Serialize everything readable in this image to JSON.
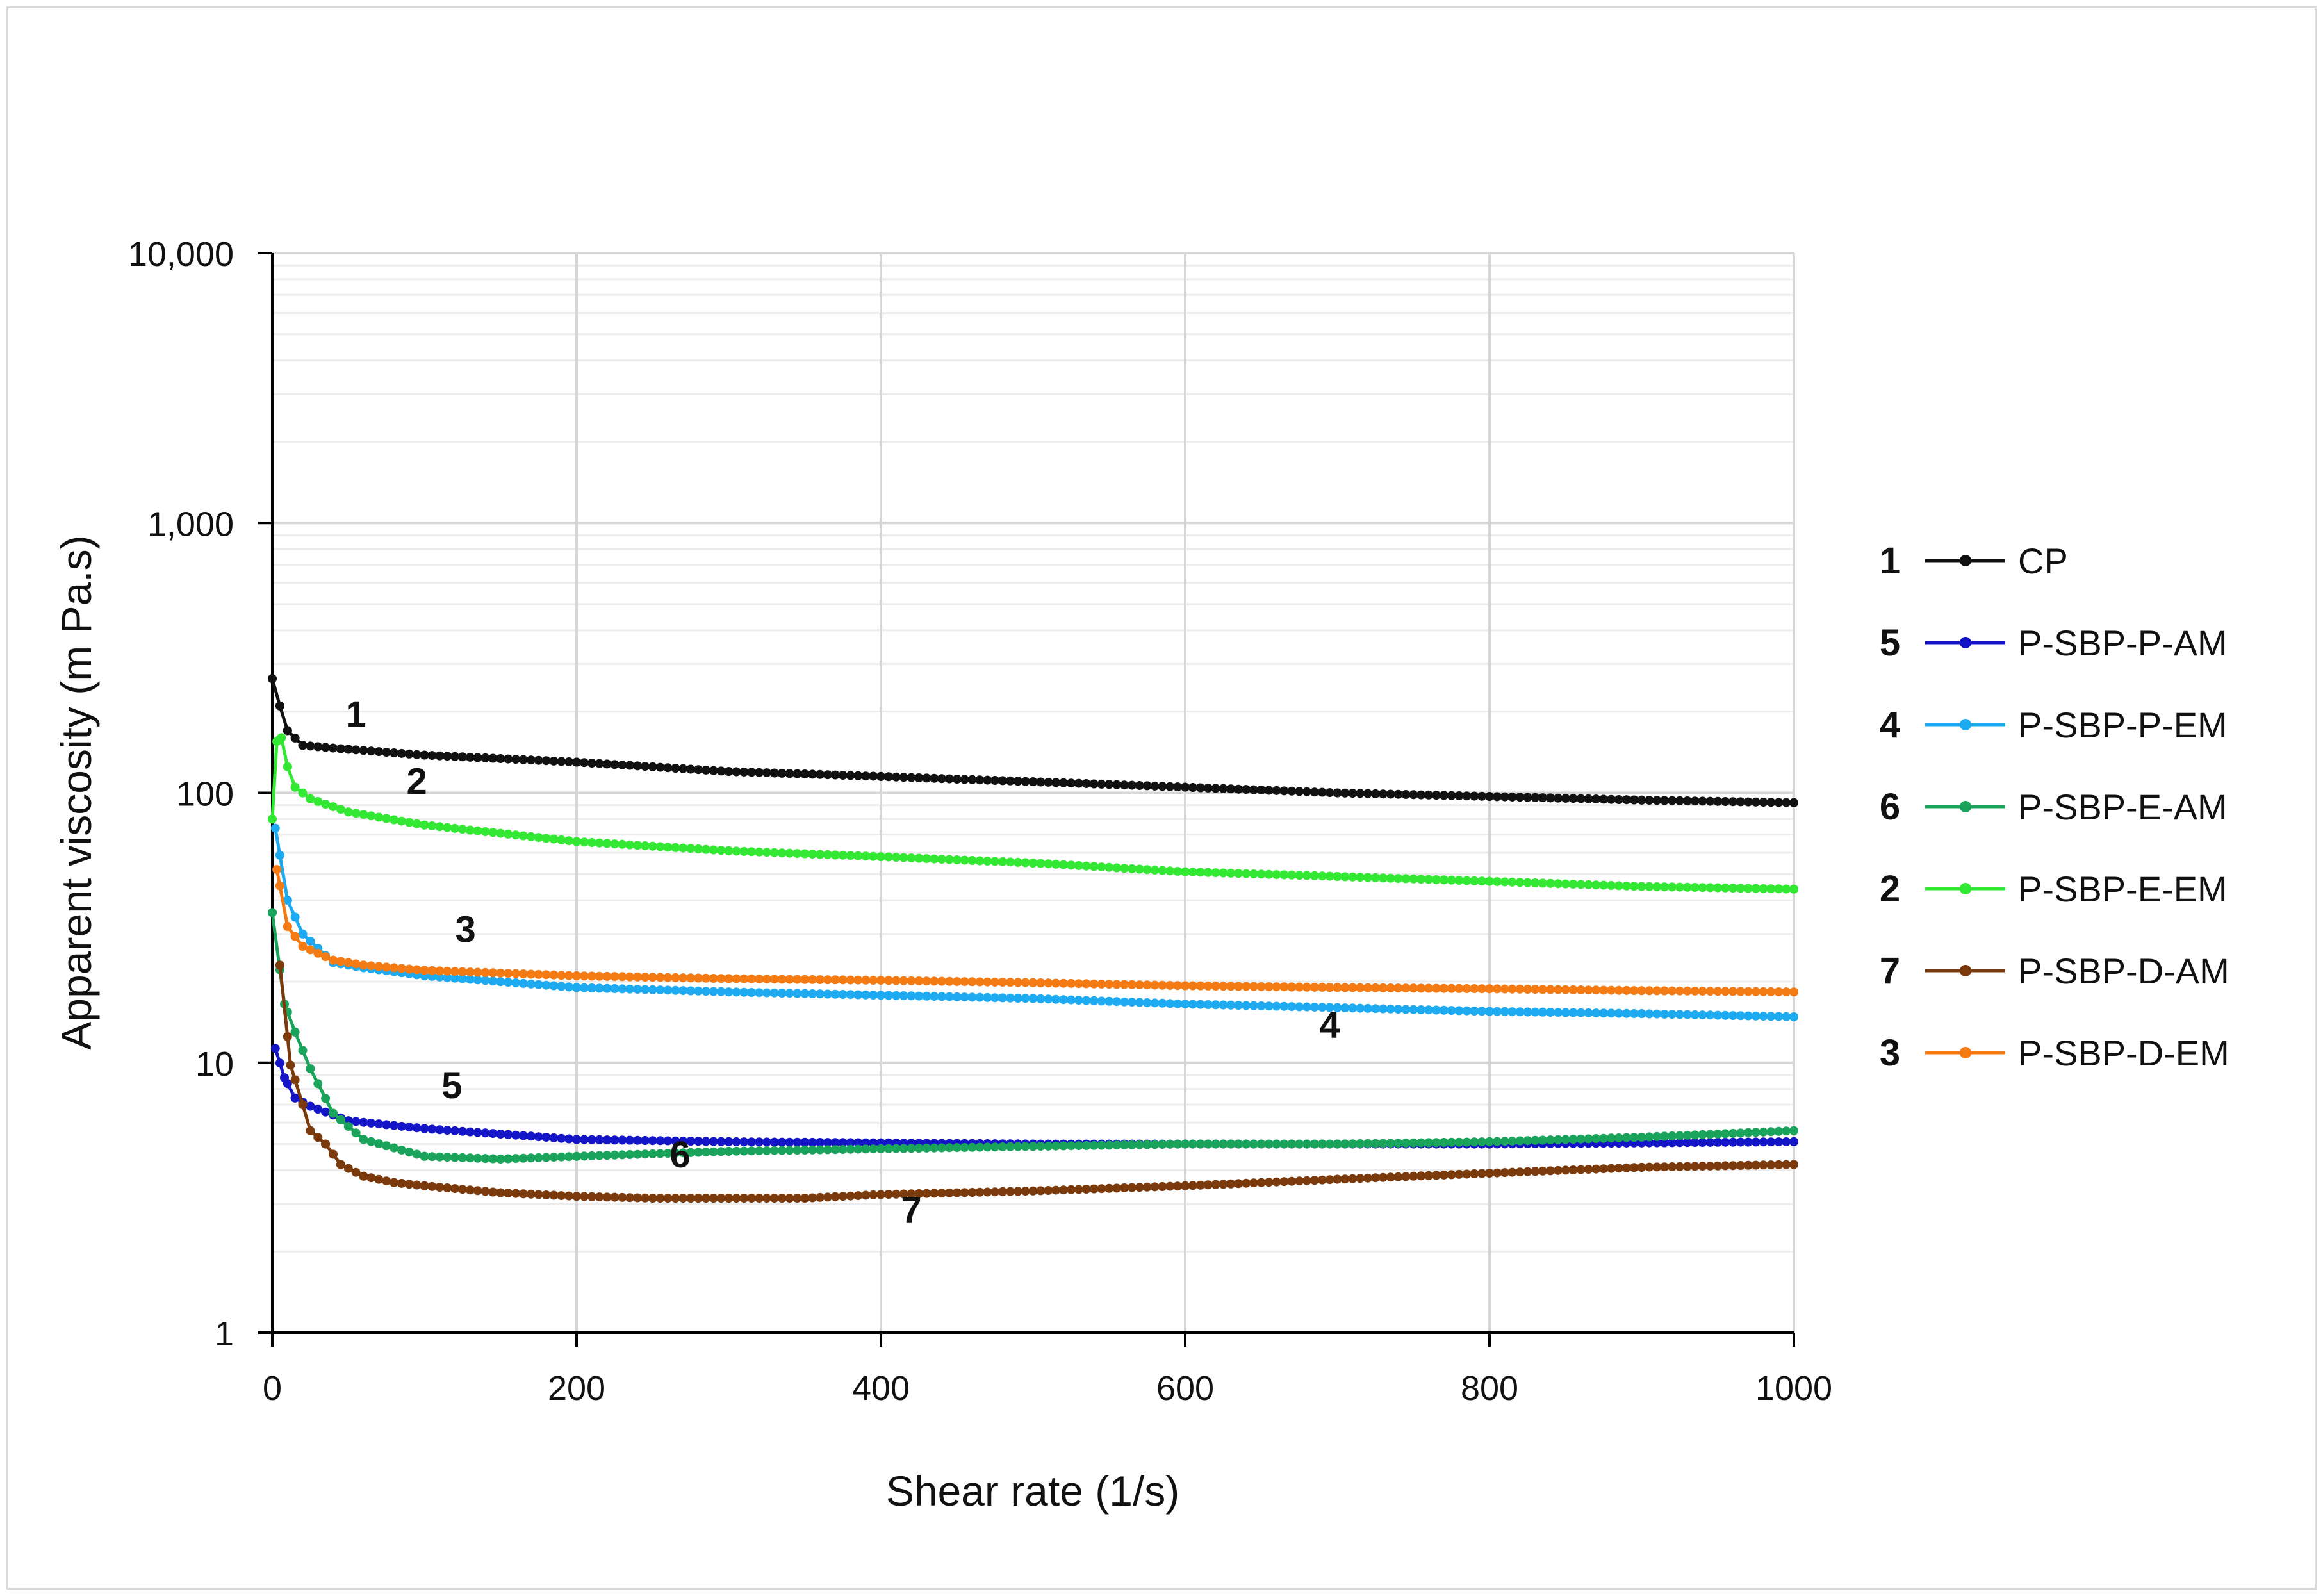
{
  "chart_data": {
    "type": "line",
    "title": "",
    "xlabel": "Shear rate (1/s)",
    "ylabel": "Apparent viscosity (m Pa.s)",
    "xlim": [
      0,
      1000
    ],
    "ylim": [
      1,
      10000
    ],
    "yscale": "log",
    "grid": true,
    "legend_position": "right",
    "x_ticks": [
      0,
      200,
      400,
      600,
      800,
      1000
    ],
    "x_tick_labels": [
      "0",
      "200",
      "400",
      "600",
      "800",
      "1000"
    ],
    "y_ticks": [
      1,
      10,
      100,
      1000,
      10000
    ],
    "y_tick_labels": [
      "1",
      "10",
      "100",
      "1,000",
      "10,000"
    ],
    "series": [
      {
        "name": "CP",
        "number": "1",
        "color": "#111111",
        "points": [
          [
            0,
            265
          ],
          [
            5,
            210
          ],
          [
            10,
            170
          ],
          [
            20,
            150
          ],
          [
            50,
            145
          ],
          [
            100,
            138
          ],
          [
            200,
            130
          ],
          [
            300,
            120
          ],
          [
            400,
            115
          ],
          [
            500,
            110
          ],
          [
            600,
            105
          ],
          [
            700,
            100
          ],
          [
            800,
            97
          ],
          [
            900,
            94
          ],
          [
            1000,
            92
          ]
        ]
      },
      {
        "name": "P-SBP-P-AM",
        "number": "5",
        "color": "#1515c8",
        "points": [
          [
            2,
            11.3
          ],
          [
            8,
            8.8
          ],
          [
            15,
            7.4
          ],
          [
            25,
            6.9
          ],
          [
            50,
            6.1
          ],
          [
            100,
            5.7
          ],
          [
            200,
            5.2
          ],
          [
            300,
            5.1
          ],
          [
            400,
            5.05
          ],
          [
            500,
            5.0
          ],
          [
            600,
            5.0
          ],
          [
            700,
            5.0
          ],
          [
            800,
            5.0
          ],
          [
            900,
            5.05
          ],
          [
            1000,
            5.1
          ]
        ]
      },
      {
        "name": "P-SBP-P-EM",
        "number": "4",
        "color": "#1eaaf0",
        "points": [
          [
            2,
            74
          ],
          [
            10,
            40
          ],
          [
            20,
            30
          ],
          [
            40,
            23.5
          ],
          [
            60,
            22.5
          ],
          [
            100,
            21
          ],
          [
            200,
            19
          ],
          [
            300,
            18.3
          ],
          [
            400,
            17.8
          ],
          [
            500,
            17.3
          ],
          [
            600,
            16.5
          ],
          [
            700,
            16
          ],
          [
            800,
            15.5
          ],
          [
            900,
            15.2
          ],
          [
            1000,
            14.8
          ]
        ]
      },
      {
        "name": "P-SBP-E-AM",
        "number": "6",
        "color": "#1aa35a",
        "points": [
          [
            0,
            36
          ],
          [
            8,
            16.5
          ],
          [
            15,
            13
          ],
          [
            25,
            9.5
          ],
          [
            40,
            6.5
          ],
          [
            60,
            5.2
          ],
          [
            100,
            4.5
          ],
          [
            150,
            4.4
          ],
          [
            200,
            4.5
          ],
          [
            300,
            4.7
          ],
          [
            400,
            4.8
          ],
          [
            500,
            4.9
          ],
          [
            600,
            5.0
          ],
          [
            700,
            5.0
          ],
          [
            800,
            5.1
          ],
          [
            900,
            5.3
          ],
          [
            1000,
            5.6
          ]
        ]
      },
      {
        "name": "P-SBP-E-EM",
        "number": "2",
        "color": "#33e833",
        "points": [
          [
            0,
            80
          ],
          [
            3,
            155
          ],
          [
            6,
            160
          ],
          [
            10,
            125
          ],
          [
            15,
            105
          ],
          [
            25,
            95
          ],
          [
            50,
            85
          ],
          [
            100,
            76
          ],
          [
            200,
            66
          ],
          [
            300,
            61
          ],
          [
            400,
            58
          ],
          [
            500,
            55
          ],
          [
            600,
            51
          ],
          [
            700,
            49
          ],
          [
            800,
            47
          ],
          [
            900,
            45
          ],
          [
            1000,
            44
          ]
        ]
      },
      {
        "name": "P-SBP-D-AM",
        "number": "7",
        "color": "#7b3a0c",
        "points": [
          [
            5,
            23
          ],
          [
            12,
            9.8
          ],
          [
            20,
            7.0
          ],
          [
            25,
            5.6
          ],
          [
            35,
            5.0
          ],
          [
            45,
            4.2
          ],
          [
            60,
            3.8
          ],
          [
            80,
            3.6
          ],
          [
            100,
            3.5
          ],
          [
            150,
            3.3
          ],
          [
            200,
            3.2
          ],
          [
            250,
            3.15
          ],
          [
            300,
            3.15
          ],
          [
            350,
            3.15
          ],
          [
            400,
            3.25
          ],
          [
            500,
            3.35
          ],
          [
            600,
            3.5
          ],
          [
            700,
            3.7
          ],
          [
            800,
            3.9
          ],
          [
            900,
            4.1
          ],
          [
            1000,
            4.2
          ]
        ]
      },
      {
        "name": "P-SBP-D-EM",
        "number": "3",
        "color": "#f47a14",
        "points": [
          [
            3,
            52
          ],
          [
            10,
            32
          ],
          [
            20,
            27
          ],
          [
            40,
            24
          ],
          [
            60,
            23
          ],
          [
            100,
            22
          ],
          [
            200,
            21
          ],
          [
            300,
            20.5
          ],
          [
            400,
            20.2
          ],
          [
            500,
            19.8
          ],
          [
            600,
            19.3
          ],
          [
            700,
            19
          ],
          [
            800,
            18.8
          ],
          [
            900,
            18.5
          ],
          [
            1000,
            18.3
          ]
        ]
      }
    ],
    "annotations": [
      {
        "text": "1",
        "x": 55,
        "y": 175
      },
      {
        "text": "2",
        "x": 95,
        "y": 99
      },
      {
        "text": "3",
        "x": 127,
        "y": 28
      },
      {
        "text": "4",
        "x": 695,
        "y": 12.4
      },
      {
        "text": "5",
        "x": 118,
        "y": 7.4
      },
      {
        "text": "6",
        "x": 268,
        "y": 4.1
      },
      {
        "text": "7",
        "x": 420,
        "y": 2.55
      }
    ]
  }
}
